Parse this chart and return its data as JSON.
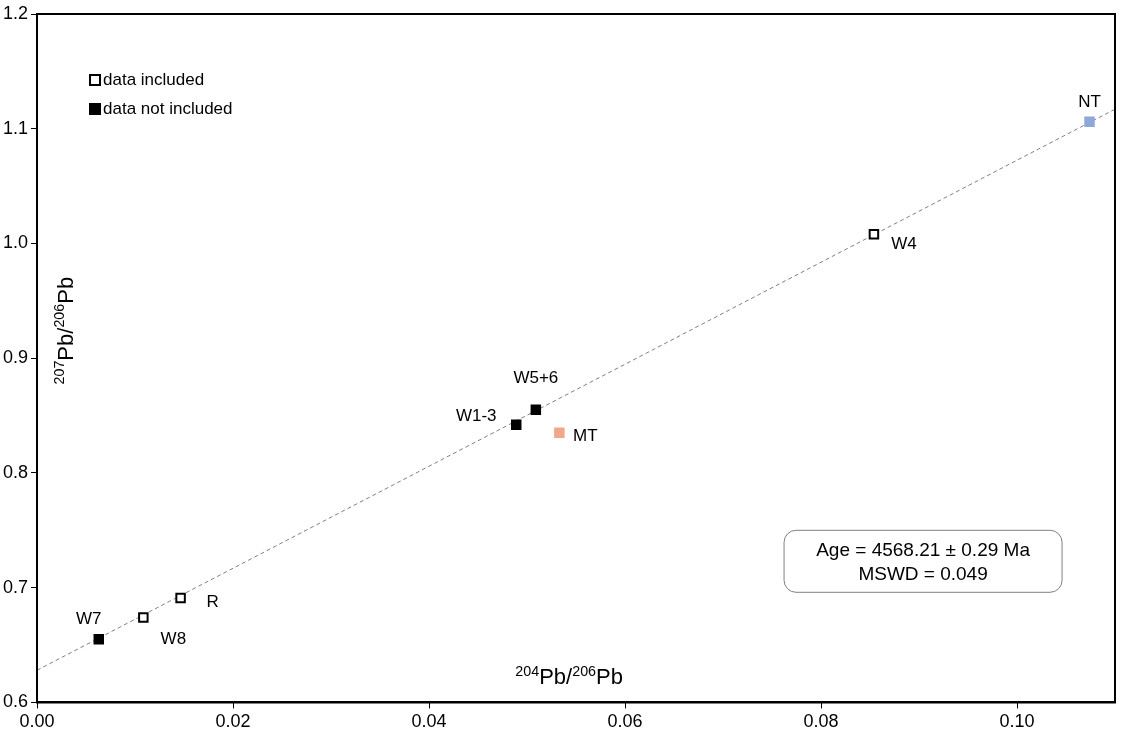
{
  "chart_data": {
    "type": "scatter",
    "xlabel": "$^{204}$Pb/$^{206}$Pb",
    "ylabel": "$^{207}$Pb/$^{206}$Pb",
    "xlim": [
      0,
      0.11
    ],
    "xticks": [
      {
        "value": 0,
        "label": "0.00"
      },
      0.02,
      0.04,
      0.06,
      0.08,
      {
        "value": 0.1,
        "label": "0.10"
      }
    ],
    "ylim": [
      0.6,
      1.2
    ],
    "yticks": [
      0.6,
      0.7,
      0.8,
      0.9,
      {
        "value": 1.0,
        "label": "1.0"
      },
      1.1,
      1.2
    ],
    "grid": false,
    "legend": "top left",
    "marker": "square",
    "series": [
      {
        "name": "data included",
        "color": "#000000",
        "marker": "square-open",
        "x": [
          0.01085,
          0.01465,
          0.0854
        ],
        "values": [
          0.674,
          0.691,
          1.008
        ]
      },
      {
        "name": "data not included",
        "color": "#000000",
        "x": [
          0.0063,
          0.0489,
          0.0509
        ],
        "values": [
          0.655,
          0.842,
          0.855
        ]
      },
      {
        "color": "#f0a88a",
        "x": [
          0.0533
        ],
        "values": [
          0.835
        ]
      },
      {
        "color": "#8fa8d8",
        "x": [
          0.1074
        ],
        "values": [
          1.106
        ]
      },
      {
        "type": "line",
        "color": "#808080",
        "line_style": "dashed",
        "marker": "none",
        "x": [
          0,
          0.11
        ],
        "values": [
          0.628,
          1.117
        ]
      }
    ],
    "annotations": [
      {
        "text": "W7",
        "x": 0.0063,
        "y": 0.655
      },
      {
        "text": "W8",
        "x": 0.01085,
        "y": 0.674
      },
      {
        "text": "R",
        "x": 0.01465,
        "y": 0.691
      },
      {
        "text": "W1-3",
        "x": 0.0489,
        "y": 0.842
      },
      {
        "text": "W5+6",
        "x": 0.0509,
        "y": 0.855
      },
      {
        "text": "MT",
        "x": 0.0533,
        "y": 0.835
      },
      {
        "text": "W4",
        "x": 0.0854,
        "y": 1.008
      },
      {
        "text": "NT",
        "x": 0.1074,
        "y": 1.106
      },
      "Age = 4568.21 ± 0.29 Ma",
      "MSWD = 0.049"
    ]
  }
}
